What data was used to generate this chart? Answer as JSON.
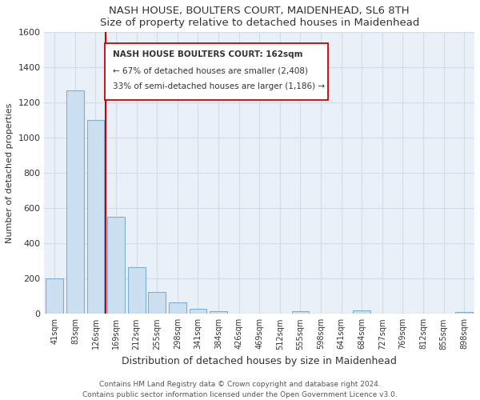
{
  "title": "NASH HOUSE, BOULTERS COURT, MAIDENHEAD, SL6 8TH",
  "subtitle": "Size of property relative to detached houses in Maidenhead",
  "xlabel": "Distribution of detached houses by size in Maidenhead",
  "ylabel": "Number of detached properties",
  "footer_line1": "Contains HM Land Registry data © Crown copyright and database right 2024.",
  "footer_line2": "Contains public sector information licensed under the Open Government Licence v3.0.",
  "bar_labels": [
    "41sqm",
    "83sqm",
    "126sqm",
    "169sqm",
    "212sqm",
    "255sqm",
    "298sqm",
    "341sqm",
    "384sqm",
    "426sqm",
    "469sqm",
    "512sqm",
    "555sqm",
    "598sqm",
    "641sqm",
    "684sqm",
    "727sqm",
    "769sqm",
    "812sqm",
    "855sqm",
    "898sqm"
  ],
  "bar_values": [
    200,
    1270,
    1100,
    550,
    265,
    125,
    65,
    30,
    15,
    0,
    0,
    0,
    15,
    0,
    0,
    20,
    0,
    0,
    0,
    0,
    10
  ],
  "bar_color": "#ccdff0",
  "bar_edge_color": "#7bafd4",
  "vline_color": "#cc0000",
  "ylim": [
    0,
    1600
  ],
  "yticks": [
    0,
    200,
    400,
    600,
    800,
    1000,
    1200,
    1400,
    1600
  ],
  "annotation_title": "NASH HOUSE BOULTERS COURT: 162sqm",
  "annotation_line1": "← 67% of detached houses are smaller (2,408)",
  "annotation_line2": "33% of semi-detached houses are larger (1,186) →",
  "grid_color": "#d0dce8",
  "bg_color": "#eaf0f8"
}
